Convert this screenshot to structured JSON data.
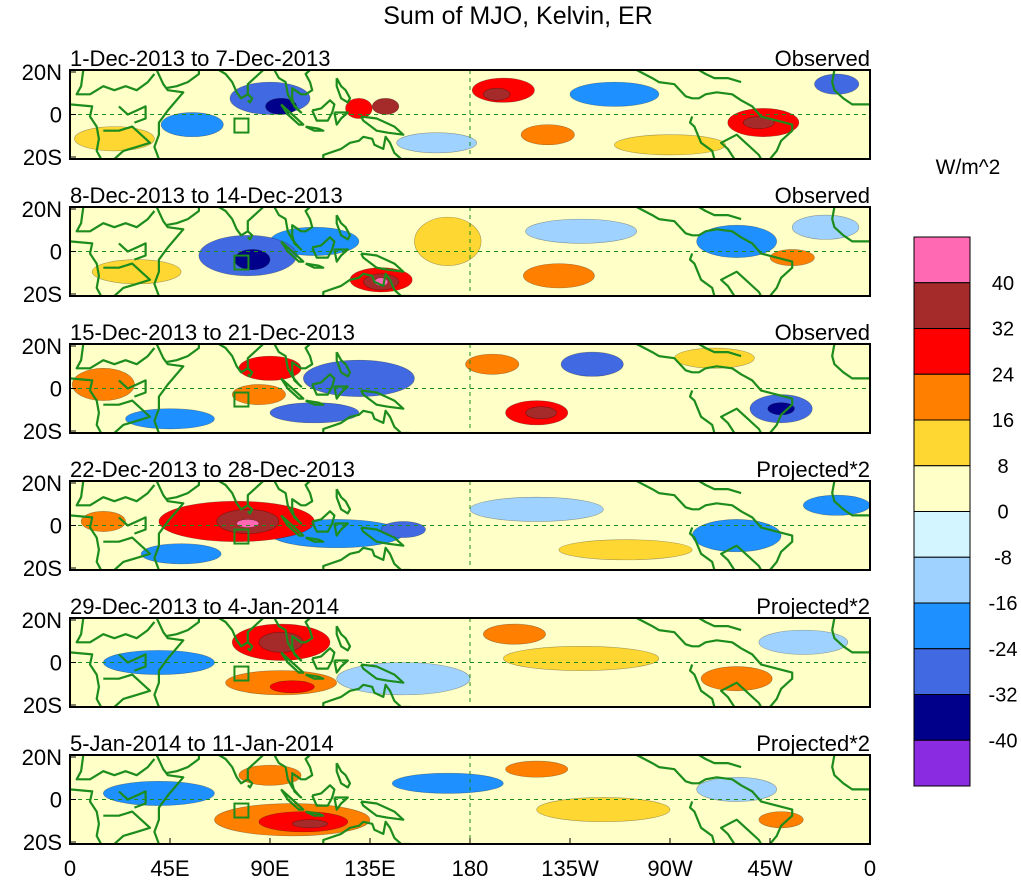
{
  "title": "Sum of MJO, Kelvin, ER",
  "units": "W/m^2",
  "lat_labels": [
    "20N",
    "0",
    "20S"
  ],
  "lon_labels": [
    "0",
    "45E",
    "90E",
    "135E",
    "180",
    "135W",
    "90W",
    "45W",
    "0"
  ],
  "colorbar": {
    "levels": [
      "40",
      "32",
      "24",
      "16",
      "8",
      "0",
      "-8",
      "-16",
      "-24",
      "-32",
      "-40"
    ],
    "colors": [
      "#ff69b4",
      "#a52a2a",
      "#ff0000",
      "#ff7f00",
      "#ffd732",
      "#ffffc8",
      "#d2f5ff",
      "#a0d2ff",
      "#1e90ff",
      "#4169e1",
      "#00008b",
      "#8a2be2"
    ]
  },
  "panels": [
    {
      "date_range": "1-Dec-2013 to 7-Dec-2013",
      "type": "Observed",
      "blobs": [
        {
          "lon": 90,
          "lat": 8,
          "rx": 18,
          "ry": 8,
          "v": -24
        },
        {
          "lon": 95,
          "lat": 4,
          "rx": 7,
          "ry": 4,
          "v": -32
        },
        {
          "lon": 55,
          "lat": -5,
          "rx": 14,
          "ry": 6,
          "v": -16
        },
        {
          "lon": 130,
          "lat": 3,
          "rx": 6,
          "ry": 5,
          "v": 24
        },
        {
          "lon": 142,
          "lat": 4,
          "rx": 6,
          "ry": 4,
          "v": 32
        },
        {
          "lon": 195,
          "lat": 12,
          "rx": 14,
          "ry": 6,
          "v": 24
        },
        {
          "lon": 192,
          "lat": 10,
          "rx": 6,
          "ry": 3,
          "v": 32
        },
        {
          "lon": 215,
          "lat": -10,
          "rx": 12,
          "ry": 5,
          "v": 16
        },
        {
          "lon": 245,
          "lat": 10,
          "rx": 20,
          "ry": 6,
          "v": -16
        },
        {
          "lon": 312,
          "lat": -4,
          "rx": 16,
          "ry": 7,
          "v": 24
        },
        {
          "lon": 310,
          "lat": -4,
          "rx": 7,
          "ry": 3,
          "v": 32
        },
        {
          "lon": 20,
          "lat": -12,
          "rx": 18,
          "ry": 6,
          "v": 8
        },
        {
          "lon": 345,
          "lat": 15,
          "rx": 10,
          "ry": 5,
          "v": -24
        },
        {
          "lon": 165,
          "lat": -14,
          "rx": 18,
          "ry": 5,
          "v": -8
        },
        {
          "lon": 270,
          "lat": -15,
          "rx": 25,
          "ry": 5,
          "v": 8
        }
      ]
    },
    {
      "date_range": "8-Dec-2013 to 14-Dec-2013",
      "type": "Observed",
      "blobs": [
        {
          "lon": 80,
          "lat": -2,
          "rx": 22,
          "ry": 10,
          "v": -24
        },
        {
          "lon": 82,
          "lat": -4,
          "rx": 8,
          "ry": 5,
          "v": -32
        },
        {
          "lon": 110,
          "lat": 5,
          "rx": 20,
          "ry": 7,
          "v": -16
        },
        {
          "lon": 140,
          "lat": -14,
          "rx": 14,
          "ry": 6,
          "v": 24
        },
        {
          "lon": 140,
          "lat": -15,
          "rx": 8,
          "ry": 4,
          "v": 32
        },
        {
          "lon": 140,
          "lat": -15,
          "rx": 3,
          "ry": 2,
          "v": 40
        },
        {
          "lon": 170,
          "lat": 5,
          "rx": 15,
          "ry": 12,
          "v": 8
        },
        {
          "lon": 220,
          "lat": -12,
          "rx": 16,
          "ry": 6,
          "v": 16
        },
        {
          "lon": 230,
          "lat": 10,
          "rx": 25,
          "ry": 6,
          "v": -8
        },
        {
          "lon": 300,
          "lat": 5,
          "rx": 18,
          "ry": 8,
          "v": -16
        },
        {
          "lon": 325,
          "lat": -3,
          "rx": 10,
          "ry": 4,
          "v": 16
        },
        {
          "lon": 30,
          "lat": -10,
          "rx": 20,
          "ry": 6,
          "v": 8
        },
        {
          "lon": 340,
          "lat": 12,
          "rx": 15,
          "ry": 6,
          "v": -8
        }
      ]
    },
    {
      "date_range": "15-Dec-2013 to 21-Dec-2013",
      "type": "Observed",
      "blobs": [
        {
          "lon": 90,
          "lat": 10,
          "rx": 14,
          "ry": 6,
          "v": 24
        },
        {
          "lon": 85,
          "lat": -3,
          "rx": 12,
          "ry": 5,
          "v": 16
        },
        {
          "lon": 15,
          "lat": 2,
          "rx": 14,
          "ry": 8,
          "v": 16
        },
        {
          "lon": 130,
          "lat": 5,
          "rx": 25,
          "ry": 9,
          "v": -24
        },
        {
          "lon": 110,
          "lat": -12,
          "rx": 20,
          "ry": 5,
          "v": -24
        },
        {
          "lon": 210,
          "lat": -12,
          "rx": 14,
          "ry": 6,
          "v": 24
        },
        {
          "lon": 212,
          "lat": -12,
          "rx": 7,
          "ry": 3,
          "v": 32
        },
        {
          "lon": 235,
          "lat": 12,
          "rx": 14,
          "ry": 6,
          "v": -24
        },
        {
          "lon": 320,
          "lat": -10,
          "rx": 14,
          "ry": 7,
          "v": -24
        },
        {
          "lon": 320,
          "lat": -10,
          "rx": 6,
          "ry": 3,
          "v": -32
        },
        {
          "lon": 290,
          "lat": 15,
          "rx": 18,
          "ry": 5,
          "v": 8
        },
        {
          "lon": 45,
          "lat": -15,
          "rx": 20,
          "ry": 5,
          "v": -16
        },
        {
          "lon": 190,
          "lat": 12,
          "rx": 12,
          "ry": 5,
          "v": 16
        }
      ]
    },
    {
      "date_range": "22-Dec-2013 to 28-Dec-2013",
      "type": "Projected*2",
      "blobs": [
        {
          "lon": 75,
          "lat": 2,
          "rx": 35,
          "ry": 10,
          "v": 24
        },
        {
          "lon": 80,
          "lat": 2,
          "rx": 14,
          "ry": 6,
          "v": 32
        },
        {
          "lon": 80,
          "lat": 1,
          "rx": 5,
          "ry": 2,
          "v": 40
        },
        {
          "lon": 15,
          "lat": 2,
          "rx": 10,
          "ry": 5,
          "v": 16
        },
        {
          "lon": 120,
          "lat": -4,
          "rx": 30,
          "ry": 7,
          "v": -16
        },
        {
          "lon": 150,
          "lat": -2,
          "rx": 10,
          "ry": 4,
          "v": -24
        },
        {
          "lon": 210,
          "lat": 8,
          "rx": 30,
          "ry": 6,
          "v": -8
        },
        {
          "lon": 300,
          "lat": -5,
          "rx": 20,
          "ry": 8,
          "v": -16
        },
        {
          "lon": 50,
          "lat": -14,
          "rx": 18,
          "ry": 5,
          "v": -16
        },
        {
          "lon": 250,
          "lat": -12,
          "rx": 30,
          "ry": 5,
          "v": 8
        },
        {
          "lon": 345,
          "lat": 10,
          "rx": 15,
          "ry": 5,
          "v": -16
        }
      ]
    },
    {
      "date_range": "29-Dec-2013 to 4-Jan-2014",
      "type": "Projected*2",
      "blobs": [
        {
          "lon": 95,
          "lat": 10,
          "rx": 22,
          "ry": 9,
          "v": 24
        },
        {
          "lon": 95,
          "lat": 10,
          "rx": 10,
          "ry": 5,
          "v": 32
        },
        {
          "lon": 95,
          "lat": -10,
          "rx": 25,
          "ry": 6,
          "v": 16
        },
        {
          "lon": 100,
          "lat": -12,
          "rx": 10,
          "ry": 3,
          "v": 24
        },
        {
          "lon": 40,
          "lat": 0,
          "rx": 25,
          "ry": 6,
          "v": -16
        },
        {
          "lon": 150,
          "lat": -8,
          "rx": 30,
          "ry": 8,
          "v": -8
        },
        {
          "lon": 200,
          "lat": 14,
          "rx": 14,
          "ry": 5,
          "v": 16
        },
        {
          "lon": 230,
          "lat": 2,
          "rx": 35,
          "ry": 6,
          "v": 8
        },
        {
          "lon": 300,
          "lat": -8,
          "rx": 16,
          "ry": 6,
          "v": 16
        },
        {
          "lon": 330,
          "lat": 10,
          "rx": 20,
          "ry": 6,
          "v": -8
        }
      ]
    },
    {
      "date_range": "5-Jan-2014 to 11-Jan-2014",
      "type": "Projected*2",
      "blobs": [
        {
          "lon": 100,
          "lat": -10,
          "rx": 35,
          "ry": 8,
          "v": 16
        },
        {
          "lon": 105,
          "lat": -11,
          "rx": 20,
          "ry": 5,
          "v": 24
        },
        {
          "lon": 108,
          "lat": -12,
          "rx": 8,
          "ry": 2,
          "v": 32
        },
        {
          "lon": 90,
          "lat": 12,
          "rx": 14,
          "ry": 5,
          "v": 16
        },
        {
          "lon": 40,
          "lat": 3,
          "rx": 25,
          "ry": 6,
          "v": -16
        },
        {
          "lon": 170,
          "lat": 8,
          "rx": 25,
          "ry": 5,
          "v": -16
        },
        {
          "lon": 210,
          "lat": 15,
          "rx": 14,
          "ry": 4,
          "v": 16
        },
        {
          "lon": 240,
          "lat": -5,
          "rx": 30,
          "ry": 6,
          "v": 8
        },
        {
          "lon": 320,
          "lat": -10,
          "rx": 10,
          "ry": 4,
          "v": 16
        },
        {
          "lon": 300,
          "lat": 5,
          "rx": 18,
          "ry": 6,
          "v": -8
        }
      ]
    }
  ]
}
